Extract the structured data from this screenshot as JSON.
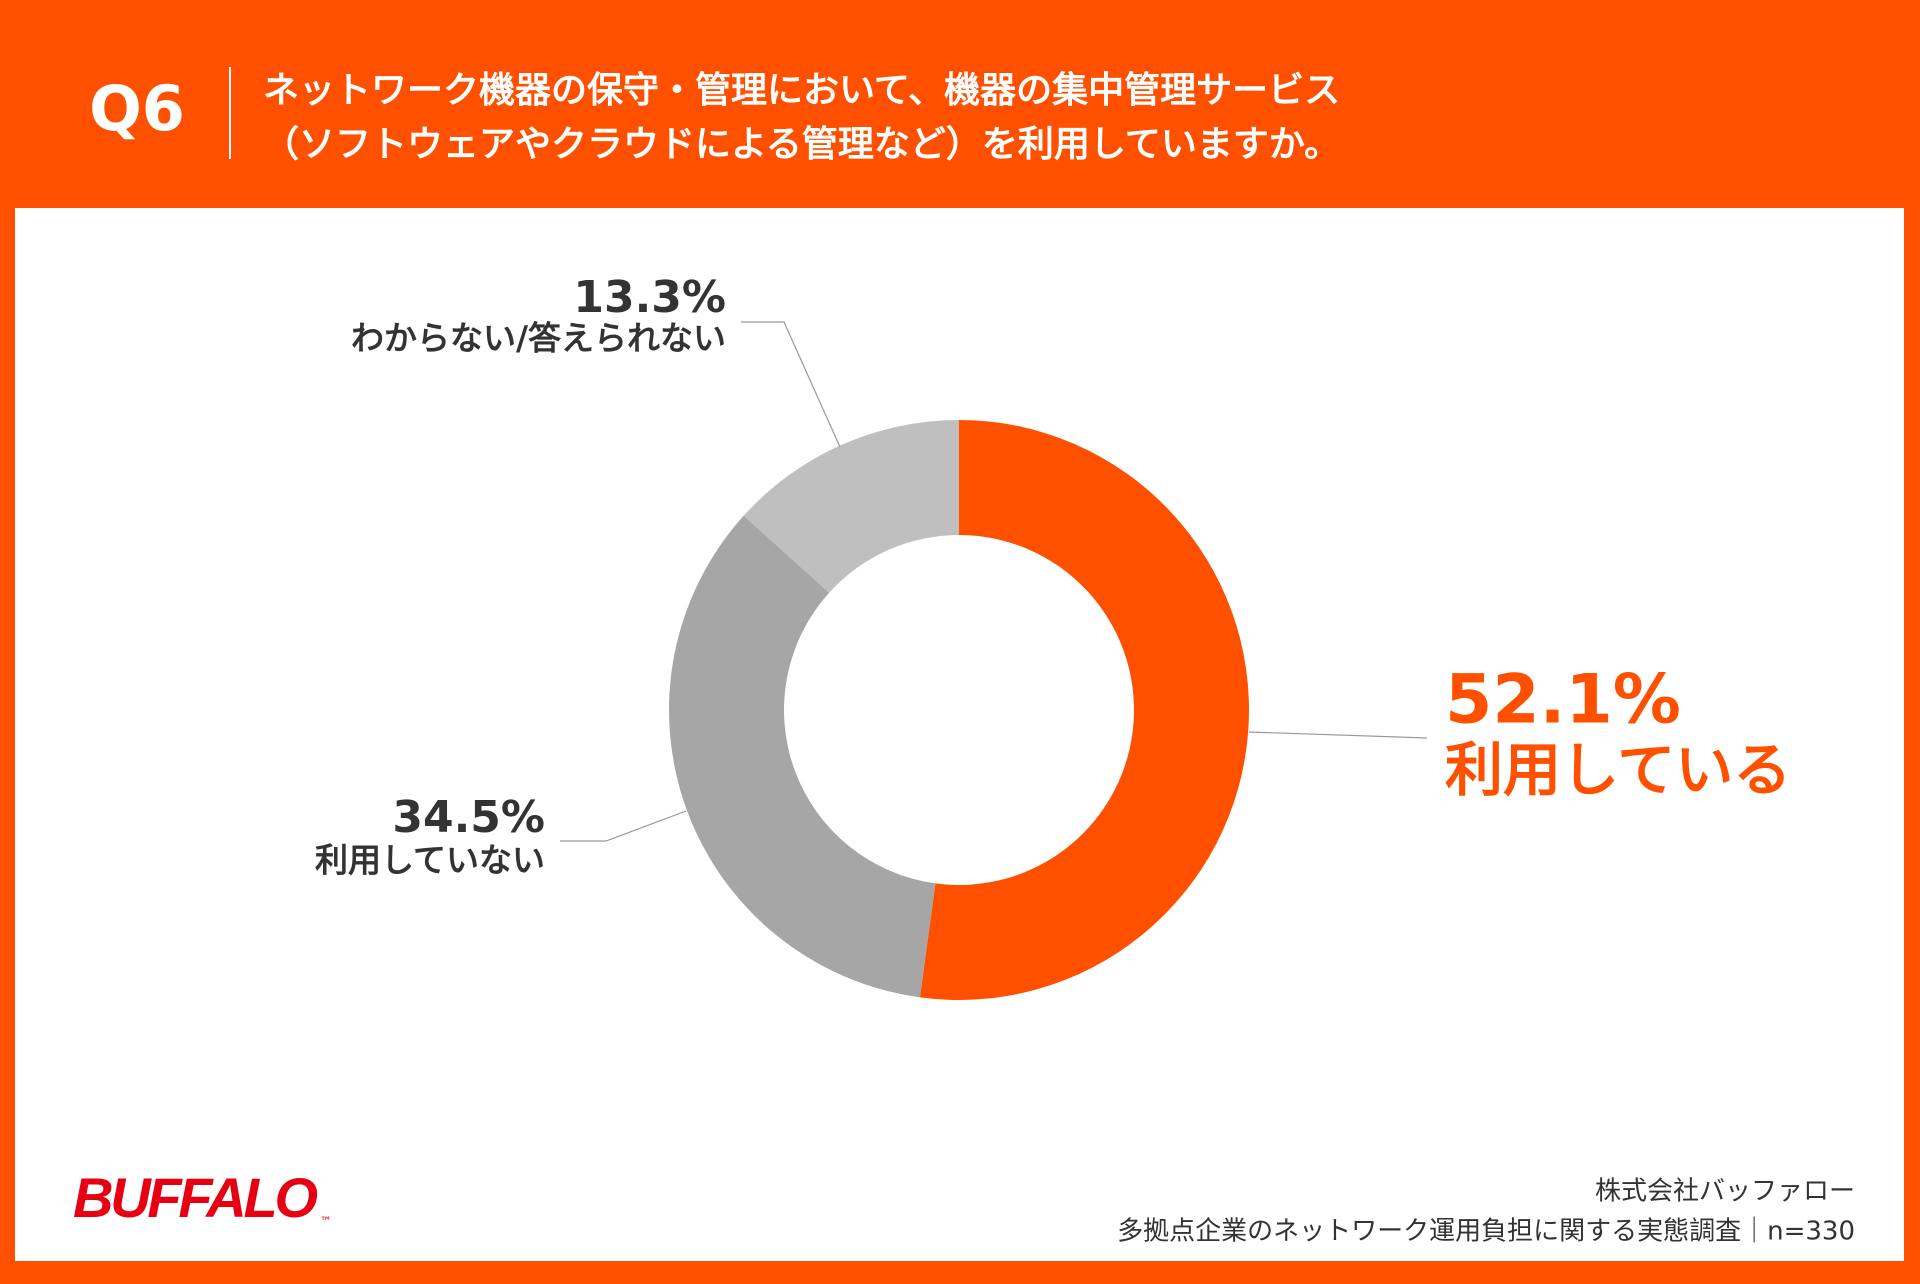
{
  "header": {
    "question": "Q6",
    "title_lines": [
      "ネットワーク機器の保守・管理において、機器の集中管理サービス",
      "（ソフトウェアやクラウドによる管理など）を利用していますか。"
    ]
  },
  "chart_data": {
    "type": "pie",
    "donut": true,
    "categories": [
      "利用している",
      "利用していない",
      "わからない/答えられない"
    ],
    "values": [
      52.1,
      34.5,
      13.3
    ],
    "value_labels": [
      "52.1%",
      "34.5%",
      "13.3%"
    ],
    "colors": [
      "#ff5000",
      "#a6a6a6",
      "#bfbfbf"
    ]
  },
  "footer": {
    "logo": "BUFFALO",
    "trademark": "™",
    "company": "株式会社バッファロー",
    "source": "多拠点企業のネットワーク運用負担に関する実態調査｜n=330"
  }
}
